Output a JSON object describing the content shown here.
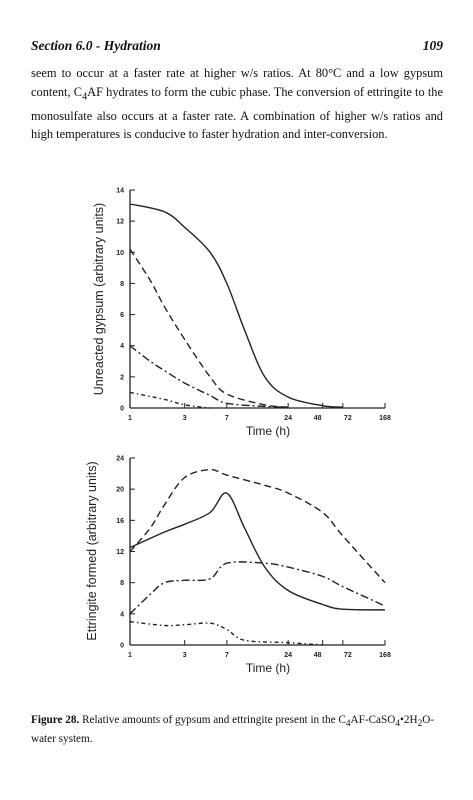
{
  "header": {
    "section": "Section 6.0 - Hydration",
    "page_number": "109"
  },
  "body": {
    "p1_a": "seem to occur at a faster rate at higher w/s ratios. At 80°C and a low gypsum content, C",
    "p1_sub": "4",
    "p1_b": "AF hydrates to form the cubic phase. The conversion of ettringite to the monosulfate also occurs at a faster rate. A combination of higher w/s ratios and high temperatures is conducive to faster hydration and inter-conversion."
  },
  "figure": {
    "caption_label": "Figure 28.",
    "caption_a": " Relative amounts of gypsum and ettringite present in the C",
    "caption_sub1": "4",
    "caption_b": "AF-CaSO",
    "caption_sub2": "4",
    "caption_c": "•2H",
    "caption_sub3": "2",
    "caption_d": "O-water system."
  },
  "chart_data": [
    {
      "type": "line",
      "title": "",
      "xlabel": "Time (h)",
      "ylabel": "Unreacted gypsum (arbitrary units)",
      "x_tick_labels": [
        "1",
        "3",
        "7",
        "24",
        "48",
        "72",
        "168"
      ],
      "y_tick_labels": [
        "0",
        "2",
        "4",
        "6",
        "8",
        "10",
        "12",
        "14"
      ],
      "ylim": [
        0,
        14
      ],
      "x_scale": "log",
      "series": [
        {
          "style": "solid",
          "x": [
            1,
            2,
            3,
            5,
            7,
            10,
            15,
            24,
            48,
            72
          ],
          "y": [
            13.1,
            12.6,
            11.6,
            10.0,
            8.0,
            5.0,
            2.0,
            0.7,
            0.15,
            0.05
          ]
        },
        {
          "style": "dashed",
          "x": [
            1,
            1.5,
            2,
            3,
            5,
            7,
            15,
            24
          ],
          "y": [
            10.2,
            8.2,
            6.5,
            4.4,
            2.0,
            0.9,
            0.2,
            0.05
          ]
        },
        {
          "style": "dash-dot",
          "x": [
            1,
            1.5,
            2,
            3,
            5,
            7,
            15,
            24
          ],
          "y": [
            4.0,
            3.0,
            2.4,
            1.6,
            0.8,
            0.3,
            0.1,
            0.05
          ]
        },
        {
          "style": "dash-dot-small",
          "x": [
            1,
            2,
            3,
            5
          ],
          "y": [
            1.0,
            0.55,
            0.2,
            0.0
          ]
        }
      ]
    },
    {
      "type": "line",
      "title": "",
      "xlabel": "Time (h)",
      "ylabel": "Ettringite formed (arbitrary units)",
      "x_tick_labels": [
        "1",
        "3",
        "7",
        "24",
        "48",
        "72",
        "168"
      ],
      "y_tick_labels": [
        "0",
        "4",
        "8",
        "12",
        "16",
        "20",
        "24"
      ],
      "ylim": [
        0,
        24
      ],
      "x_scale": "log",
      "series": [
        {
          "style": "solid",
          "x": [
            1,
            2,
            3,
            5,
            7,
            10,
            15,
            24,
            48,
            72,
            168
          ],
          "y": [
            12.5,
            14.5,
            15.5,
            17.0,
            19.5,
            15.0,
            10.0,
            7.0,
            5.2,
            4.6,
            4.5
          ]
        },
        {
          "style": "dashed",
          "x": [
            1,
            1.5,
            2,
            3,
            5,
            7,
            15,
            24,
            48,
            72,
            168
          ],
          "y": [
            12.0,
            15.0,
            18.0,
            21.5,
            22.5,
            21.8,
            20.5,
            19.5,
            17.0,
            14.0,
            8.0
          ]
        },
        {
          "style": "dash-dot",
          "x": [
            1,
            1.5,
            2,
            3,
            5,
            7,
            15,
            24,
            48,
            72,
            168
          ],
          "y": [
            4.0,
            6.5,
            8.0,
            8.3,
            8.5,
            10.5,
            10.5,
            10.0,
            8.8,
            7.5,
            5.0
          ]
        },
        {
          "style": "dash-dot-small",
          "x": [
            1,
            2,
            3,
            5,
            7,
            10,
            24,
            48
          ],
          "y": [
            3.0,
            2.5,
            2.6,
            2.8,
            2.0,
            0.6,
            0.3,
            0.0
          ]
        }
      ]
    }
  ]
}
